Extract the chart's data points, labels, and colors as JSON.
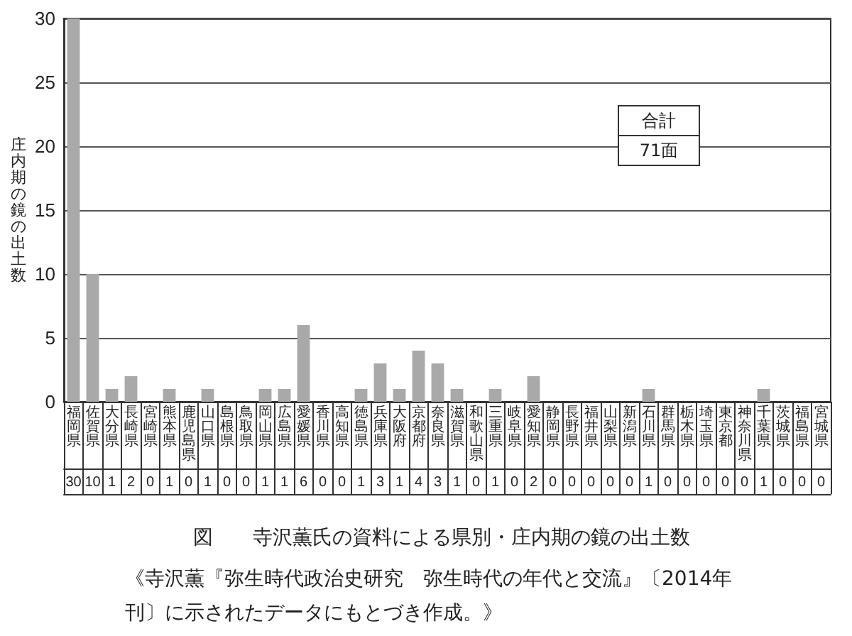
{
  "chart_data": {
    "type": "bar",
    "title": "図　　寺沢薫氏の資料による県別・庄内期の鏡の出土数",
    "ylabel": "庄内期の鏡の出土数",
    "categories": [
      "福岡県",
      "佐賀県",
      "大分県",
      "長崎県",
      "宮崎県",
      "熊本県",
      "鹿児島県",
      "山口県",
      "島根県",
      "鳥取県",
      "岡山県",
      "広島県",
      "愛媛県",
      "香川県",
      "高知県",
      "徳島県",
      "兵庫県",
      "大阪府",
      "京都府",
      "奈良県",
      "滋賀県",
      "和歌山県",
      "三重県",
      "岐阜県",
      "愛知県",
      "静岡県",
      "長野県",
      "福井県",
      "山梨県",
      "新潟県",
      "石川県",
      "群馬県",
      "栃木県",
      "埼玉県",
      "東京都",
      "神奈川県",
      "千葉県",
      "茨城県",
      "福島県",
      "宮城県"
    ],
    "values": [
      30,
      10,
      1,
      2,
      0,
      1,
      0,
      1,
      0,
      0,
      1,
      1,
      6,
      0,
      0,
      1,
      3,
      1,
      4,
      3,
      1,
      0,
      1,
      0,
      2,
      0,
      0,
      0,
      0,
      0,
      1,
      0,
      0,
      0,
      0,
      0,
      1,
      0,
      0,
      0
    ],
    "color": "#a9a9a9",
    "ylim": [
      0,
      30
    ],
    "yticks": [
      0,
      5,
      10,
      15,
      20,
      25,
      30
    ],
    "grid": "y",
    "data_labels": true,
    "annotations": [
      "合計",
      "71面",
      "《寺沢薫『弥生時代政治史研究　弥生時代の年代と交流』〔2014年刊〕に示されたデータにもとづき作成。》"
    ]
  }
}
